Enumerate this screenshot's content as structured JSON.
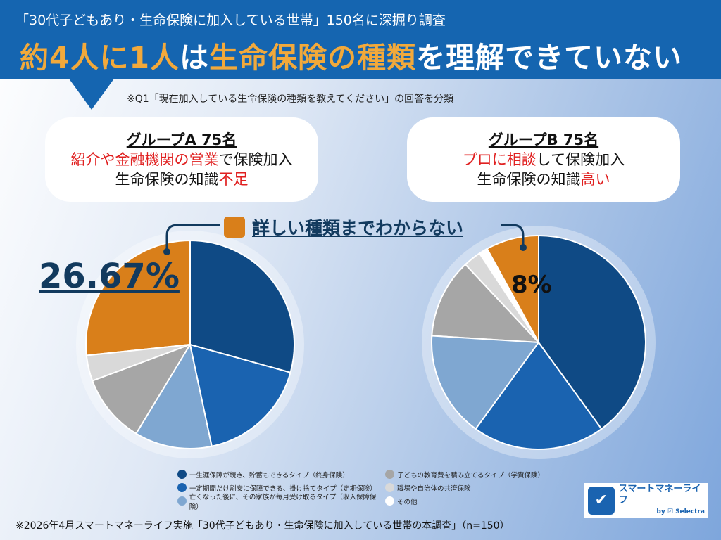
{
  "header": {
    "subtitle": "「30代子どもあり・生命保険に加入している世帯」150名に深掘り調査",
    "title_pre": "約4人に1人",
    "title_mid": "は",
    "title_hl": "生命保険の種類",
    "title_post": "を理解できていない"
  },
  "note": "※Q1「現在加入している生命保険の種類を教えてください」の回答を分類",
  "group_a": {
    "title": "グループA 75名",
    "line1_red": "紹介や金融機関の営業",
    "line1_rest": "で保険加入",
    "line2_pre": "生命保険の知識",
    "line2_red": "不足"
  },
  "group_b": {
    "title": "グループB 75名",
    "line1_red": "プロに相談",
    "line1_rest": "して保険加入",
    "line2_pre": "生命保険の知識",
    "line2_red": "高い"
  },
  "callout": "詳しい種類までわからない",
  "footer": "※2026年4月スマートマネーライフ実施「30代子どもあり・生命保険に加入している世帯の本調査」（n=150）",
  "logo": {
    "name": "スマートマネーライフ",
    "by": "by ☑ Selectra"
  },
  "chart_data": [
    {
      "type": "pie",
      "name": "グループA",
      "highlight_label": "26.67%",
      "categories": [
        "一生涯保障が続き、貯蓄もできるタイプ（終身保険）",
        "一定期間だけ割安に保障できる、掛け捨てタイプ（定期保険）",
        "亡くなった後に、その家族が毎月受け取るタイプ（収入保障保険）",
        "子どもの教育費を積み立てるタイプ（学資保険）",
        "職場や自治体の共済保険",
        "その他",
        "詳しい種類までわからない"
      ],
      "values": [
        29.33,
        17.33,
        12,
        10.67,
        4,
        0,
        26.67
      ]
    },
    {
      "type": "pie",
      "name": "グループB",
      "highlight_label": "8%",
      "categories": [
        "一生涯保障が続き、貯蓄もできるタイプ（終身保険）",
        "一定期間だけ割安に保障できる、掛け捨てタイプ（定期保険）",
        "亡くなった後に、その家族が毎月受け取るタイプ（収入保障保険）",
        "子どもの教育費を積み立てるタイプ（学資保険）",
        "職場や自治体の共済保険",
        "その他",
        "詳しい種類までわからない"
      ],
      "values": [
        40,
        20,
        16,
        12,
        2.67,
        1.33,
        8
      ]
    }
  ],
  "legend": [
    {
      "label": "一生涯保障が続き、貯蓄もできるタイプ（終身保険）",
      "color": "#0f4a85"
    },
    {
      "label": "子どもの教育費を積み立てるタイプ（学資保険）",
      "color": "#a6a6a6"
    },
    {
      "label": "一定期間だけ割安に保障できる、掛け捨てタイプ（定期保険）",
      "color": "#1a63b0"
    },
    {
      "label": "職場や自治体の共済保険",
      "color": "#d9d9d9"
    },
    {
      "label": "亡くなった後に、その家族が毎月受け取るタイプ（収入保障保険）",
      "color": "#7fa7d1"
    },
    {
      "label": "その他",
      "color": "#ffffff"
    }
  ],
  "colors": [
    "#0f4a85",
    "#1a63b0",
    "#7fa7d1",
    "#a6a6a6",
    "#d9d9d9",
    "#ffffff",
    "#d97f1a"
  ]
}
